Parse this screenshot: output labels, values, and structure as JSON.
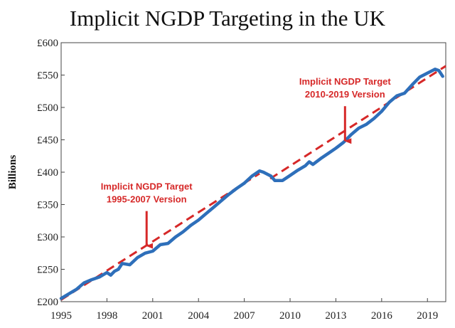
{
  "chart_data": {
    "type": "line",
    "title": "Implicit NGDP Targeting in the UK",
    "ylabel": "Billions",
    "xlabel": "",
    "xlim": [
      1995,
      2020.2
    ],
    "ylim": [
      200,
      600
    ],
    "x_ticks": [
      "1995",
      "1998",
      "2001",
      "2004",
      "2007",
      "2010",
      "2013",
      "2016",
      "2019"
    ],
    "y_ticks": [
      "£200",
      "£250",
      "£300",
      "£350",
      "£400",
      "£450",
      "£500",
      "£550",
      "£600"
    ],
    "grid": false,
    "colors": {
      "series": "#2e6fba",
      "target": "#d62828",
      "annotation": "#d62828"
    },
    "series": [
      {
        "x": [
          1995.0,
          1995.5,
          1996.0,
          1996.5,
          1997.0,
          1997.5,
          1998.0,
          1998.25,
          1998.5,
          1998.75,
          1999.0,
          1999.5,
          2000.0,
          2000.5,
          2001.0,
          2001.5,
          2002.0,
          2002.5,
          2003.0,
          2003.5,
          2004.0,
          2004.5,
          2005.0,
          2005.5,
          2006.0,
          2006.5,
          2007.0,
          2007.5,
          2008.0,
          2008.25,
          2008.75,
          2009.0,
          2009.5,
          2010.0,
          2010.5,
          2011.0,
          2011.25,
          2011.5,
          2012.0,
          2012.5,
          2013.0,
          2013.5,
          2014.0,
          2014.5,
          2015.0,
          2015.5,
          2016.0,
          2016.5,
          2017.0,
          2017.5,
          2018.0,
          2018.5,
          2019.0,
          2019.5,
          2019.75,
          2020.0
        ],
        "values": [
          205,
          212,
          219,
          229,
          234,
          238,
          245,
          241,
          247,
          250,
          259,
          257,
          268,
          275,
          278,
          288,
          290,
          300,
          308,
          318,
          326,
          336,
          346,
          356,
          366,
          375,
          383,
          394,
          402,
          400,
          394,
          387,
          387,
          395,
          403,
          410,
          416,
          412,
          421,
          429,
          437,
          446,
          458,
          468,
          474,
          483,
          494,
          508,
          518,
          522,
          535,
          547,
          553,
          559,
          557,
          548
        ]
      },
      {
        "x": [
          1995,
          2008
        ],
        "values": [
          203,
          398
        ]
      },
      {
        "x": [
          2008.7,
          2020.2
        ],
        "values": [
          390,
          564
        ]
      }
    ],
    "annotations": [
      {
        "text": [
          "Implicit NGDP Target",
          "1995-2007 Version"
        ],
        "arrow_to": [
          2000.6,
          285
        ]
      },
      {
        "text": [
          "Implicit NGDP Target",
          "2010-2019 Version"
        ],
        "arrow_to": [
          2013.6,
          447
        ]
      }
    ]
  }
}
